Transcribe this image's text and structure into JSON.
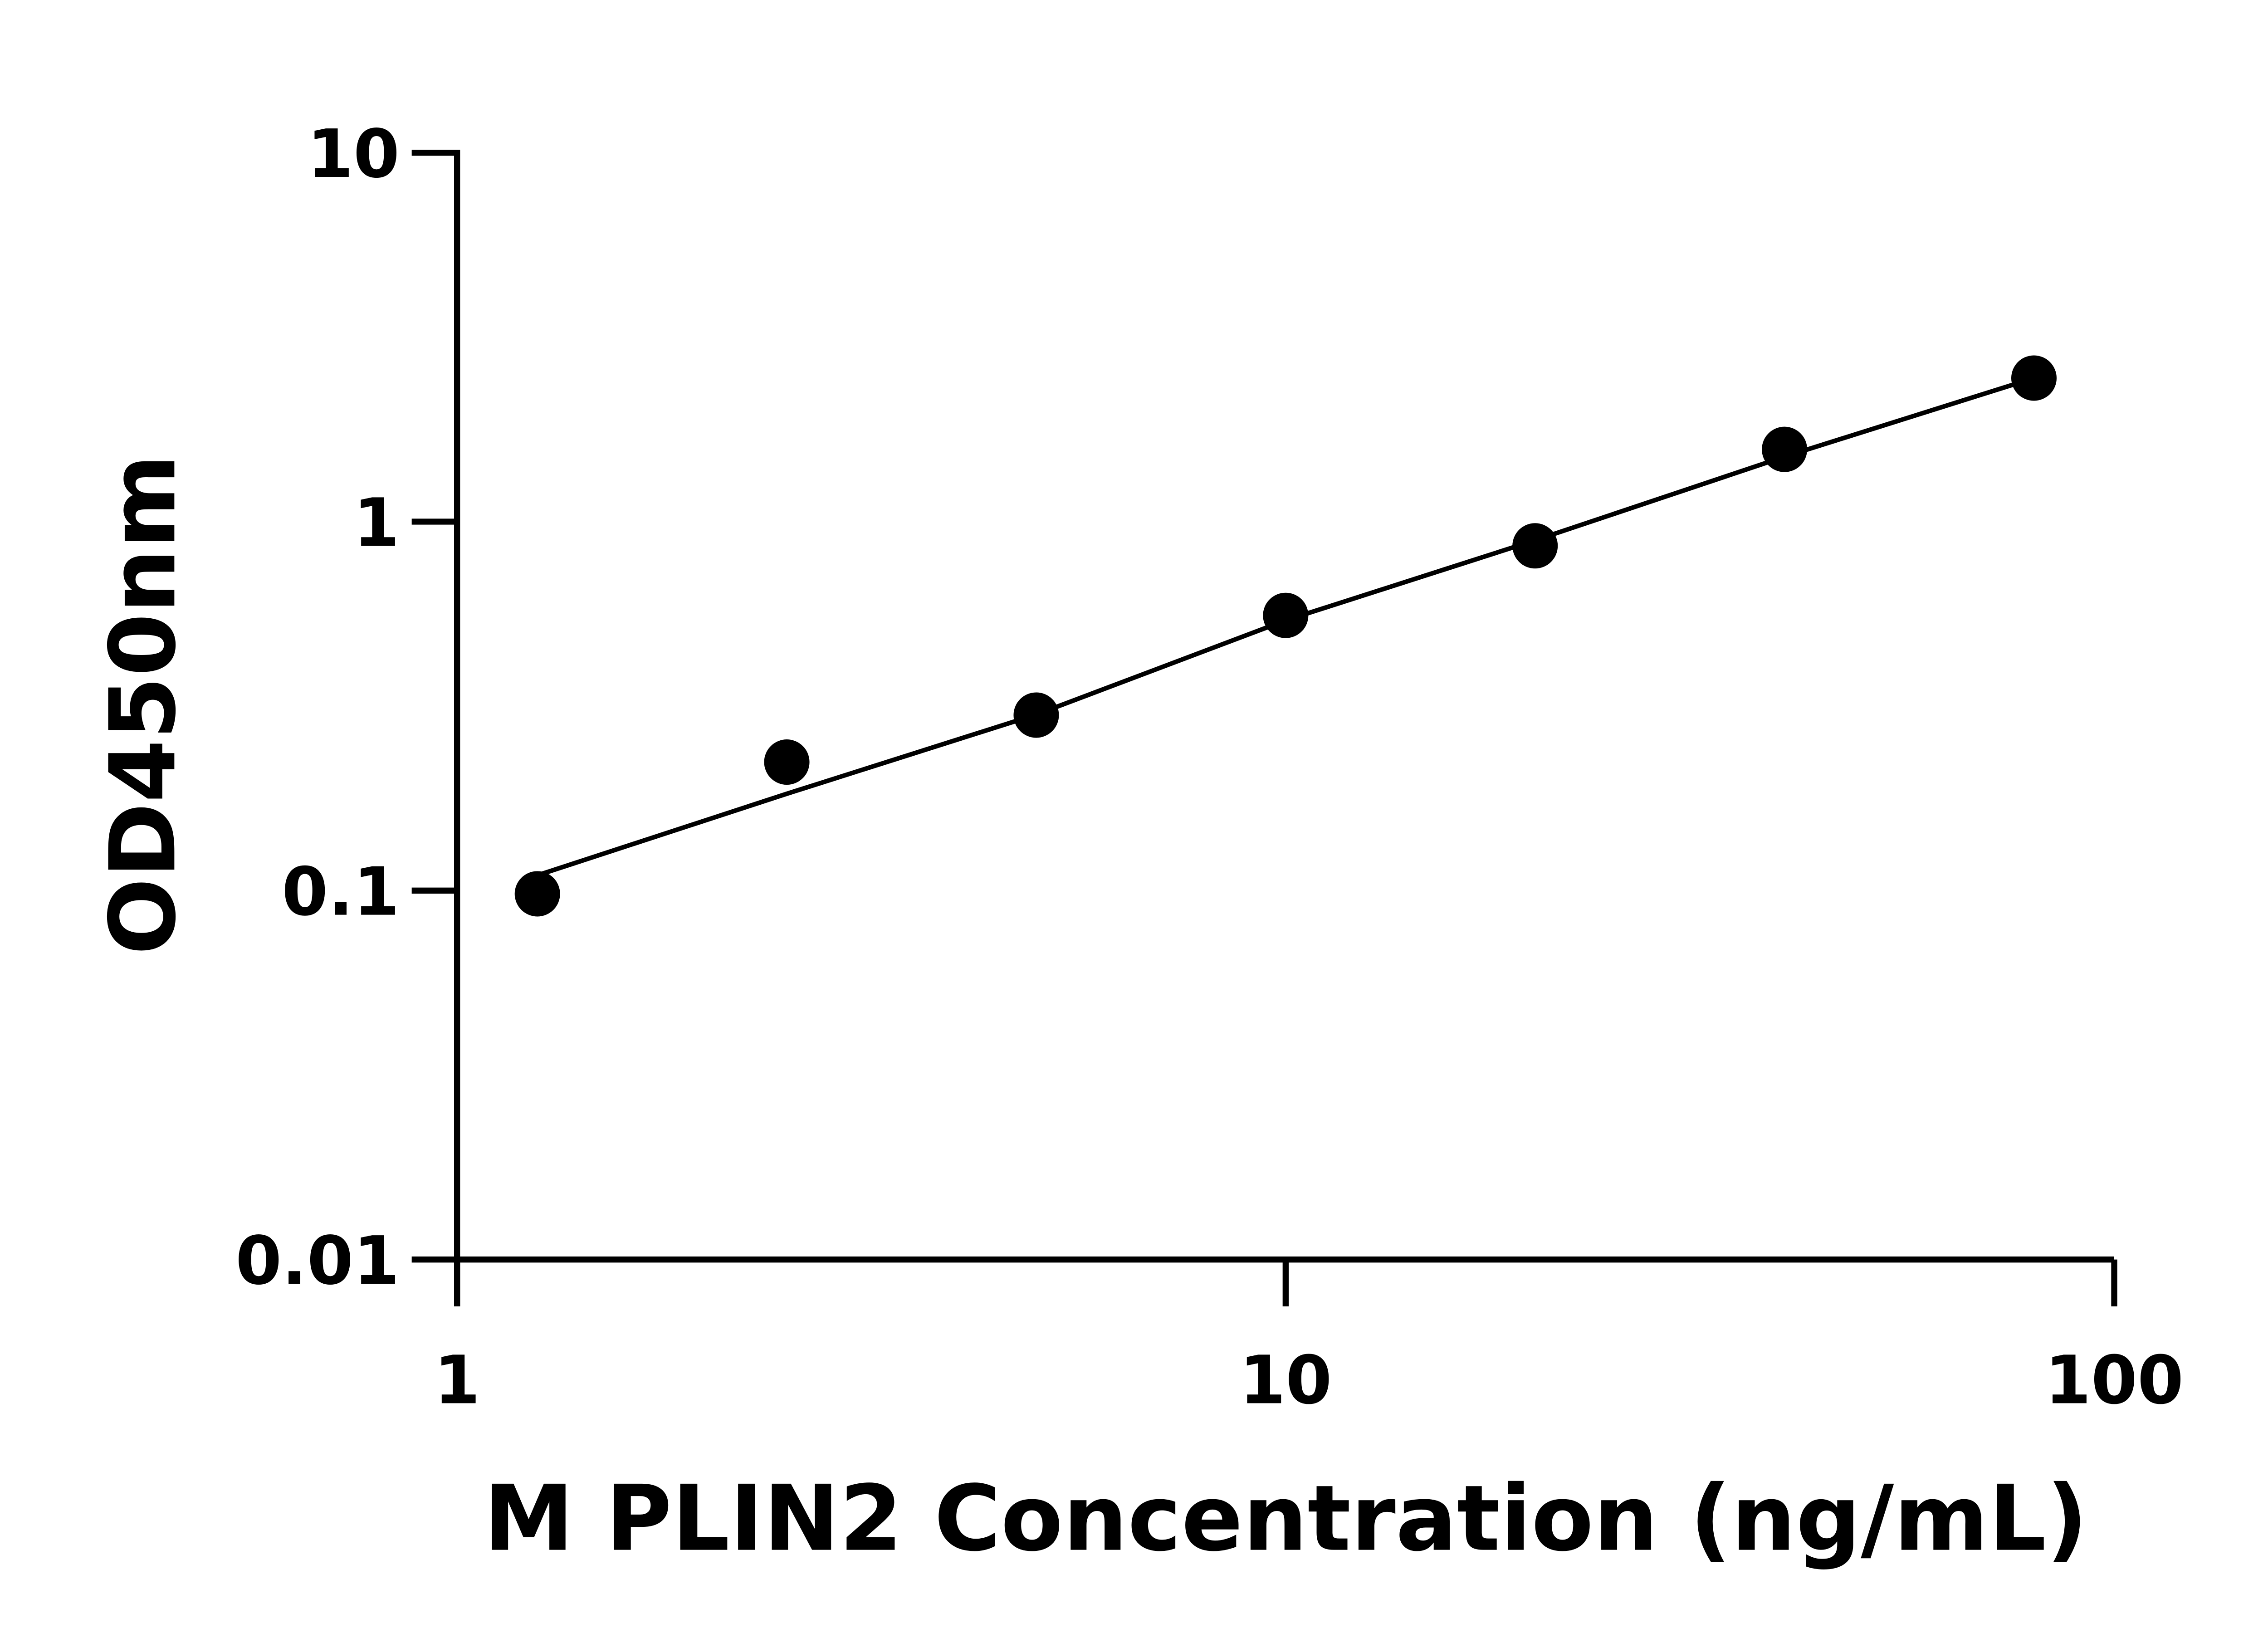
{
  "chart_data": {
    "type": "scatter",
    "x_label": "M PLIN2 Concentration (ng/mL)",
    "y_label": "OD450nm",
    "log_x": true,
    "log_y": true,
    "xlim": [
      1,
      100
    ],
    "xticks": [
      1,
      10,
      100
    ],
    "ylim": [
      0.01,
      10
    ],
    "yticks": [
      0.01,
      0.1,
      1,
      10
    ],
    "grid": false,
    "series": [
      {
        "type": "scatter",
        "color": "#000000",
        "x": [
          1.25,
          2.5,
          5,
          10,
          20,
          40,
          80
        ],
        "values": [
          0.098,
          0.223,
          0.299,
          0.557,
          0.86,
          1.57,
          2.45
        ]
      },
      {
        "type": "line",
        "color": "#000000",
        "x": [
          1.25,
          2.5,
          5,
          10,
          20,
          40,
          80
        ],
        "values": [
          0.11,
          0.183,
          0.3,
          0.54,
          0.89,
          1.5,
          2.45
        ]
      }
    ]
  }
}
